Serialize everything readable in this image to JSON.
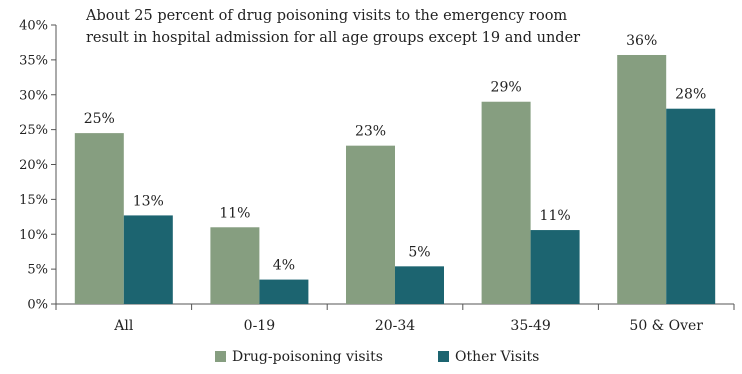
{
  "chart_data": {
    "type": "bar",
    "title_lines": [
      "About 25 percent of drug poisoning visits to the emergency room",
      "result in hospital admission for all age groups except 19 and under"
    ],
    "categories": [
      "All",
      "0-19",
      "20-34",
      "35-49",
      "50 & Over"
    ],
    "series": [
      {
        "name": "Drug-poisoning visits",
        "color": "#869e80",
        "values": [
          24.5,
          11.0,
          22.7,
          29.0,
          35.7
        ],
        "labels": [
          "25%",
          "11%",
          "23%",
          "29%",
          "36%"
        ]
      },
      {
        "name": "Other Visits",
        "color": "#1c6470",
        "values": [
          12.7,
          3.5,
          5.4,
          10.6,
          28.0
        ],
        "labels": [
          "13%",
          "4%",
          "5%",
          "11%",
          "28%"
        ]
      }
    ],
    "y_ticks": [
      "0%",
      "5%",
      "10%",
      "15%",
      "20%",
      "25%",
      "30%",
      "35%",
      "40%"
    ],
    "ylim": [
      0,
      40
    ],
    "legend_position": "bottom",
    "grid": false
  }
}
